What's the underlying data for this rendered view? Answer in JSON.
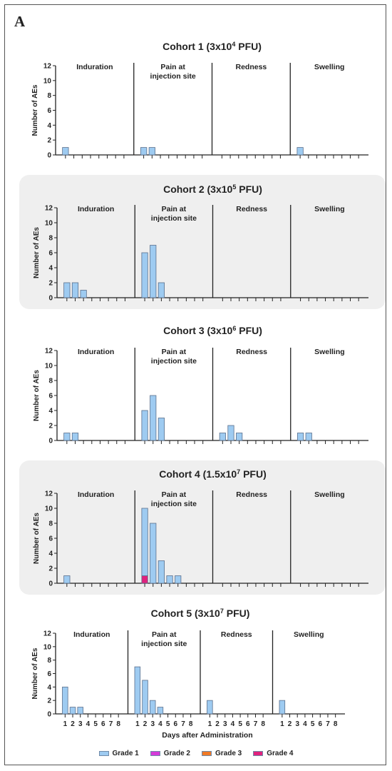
{
  "panel_label": "A",
  "colors": {
    "grade1": "#9ecbf1",
    "grade2": "#d43ad8",
    "grade3": "#f07a26",
    "grade4": "#e0227d",
    "panel_shade": "#efefef"
  },
  "legend": [
    {
      "label": "Grade 1",
      "color_key": "grade1"
    },
    {
      "label": "Grade 2",
      "color_key": "grade2"
    },
    {
      "label": "Grade 3",
      "color_key": "grade3"
    },
    {
      "label": "Grade 4",
      "color_key": "grade4"
    }
  ],
  "chart_data": [
    {
      "type": "bar",
      "title": {
        "base": "Cohort 1 (3x10",
        "exp": "4",
        "unit": " PFU)"
      },
      "ylabel": "Number of AEs",
      "ylim": [
        0,
        12
      ],
      "yticks": [
        "0",
        "2",
        "4",
        "6",
        "8",
        "10",
        "12"
      ],
      "x": [
        "1",
        "2",
        "3",
        "4",
        "5",
        "6",
        "7",
        "8"
      ],
      "shaded": false,
      "facets": [
        {
          "label": "Induration",
          "series": [
            {
              "name": "Grade 1",
              "values": [
                1,
                0,
                0,
                0,
                0,
                0,
                0,
                0
              ]
            }
          ]
        },
        {
          "label": "Pain at\ninjection site",
          "series": [
            {
              "name": "Grade 1",
              "values": [
                1,
                1,
                0,
                0,
                0,
                0,
                0,
                0
              ]
            }
          ]
        },
        {
          "label": "Redness",
          "series": [
            {
              "name": "Grade 1",
              "values": [
                0,
                0,
                0,
                0,
                0,
                0,
                0,
                0
              ]
            }
          ]
        },
        {
          "label": "Swelling",
          "series": [
            {
              "name": "Grade 1",
              "values": [
                1,
                0,
                0,
                0,
                0,
                0,
                0,
                0
              ]
            }
          ]
        }
      ]
    },
    {
      "type": "bar",
      "title": {
        "base": "Cohort 2 (3x10",
        "exp": "5",
        "unit": " PFU)"
      },
      "ylabel": "Number of AEs",
      "ylim": [
        0,
        12
      ],
      "yticks": [
        "0",
        "2",
        "4",
        "6",
        "8",
        "10",
        "12"
      ],
      "x": [
        "1",
        "2",
        "3",
        "4",
        "5",
        "6",
        "7",
        "8"
      ],
      "shaded": true,
      "facets": [
        {
          "label": "Induration",
          "series": [
            {
              "name": "Grade 1",
              "values": [
                2,
                2,
                1,
                0,
                0,
                0,
                0,
                0
              ]
            }
          ]
        },
        {
          "label": "Pain at\ninjection site",
          "series": [
            {
              "name": "Grade 1",
              "values": [
                6,
                7,
                2,
                0,
                0,
                0,
                0,
                0
              ]
            }
          ]
        },
        {
          "label": "Redness",
          "series": [
            {
              "name": "Grade 1",
              "values": [
                0,
                0,
                0,
                0,
                0,
                0,
                0,
                0
              ]
            }
          ]
        },
        {
          "label": "Swelling",
          "series": [
            {
              "name": "Grade 1",
              "values": [
                0,
                0,
                0,
                0,
                0,
                0,
                0,
                0
              ]
            }
          ]
        }
      ]
    },
    {
      "type": "bar",
      "title": {
        "base": "Cohort 3 (3x10",
        "exp": "6",
        "unit": " PFU)"
      },
      "ylabel": "Number of AEs",
      "ylim": [
        0,
        12
      ],
      "yticks": [
        "0",
        "2",
        "4",
        "6",
        "8",
        "10",
        "12"
      ],
      "x": [
        "1",
        "2",
        "3",
        "4",
        "5",
        "6",
        "7",
        "8"
      ],
      "shaded": false,
      "facets": [
        {
          "label": "Induration",
          "series": [
            {
              "name": "Grade 1",
              "values": [
                1,
                1,
                0,
                0,
                0,
                0,
                0,
                0
              ]
            }
          ]
        },
        {
          "label": "Pain at\ninjection site",
          "series": [
            {
              "name": "Grade 1",
              "values": [
                4,
                6,
                3,
                0,
                0,
                0,
                0,
                0
              ]
            }
          ]
        },
        {
          "label": "Redness",
          "series": [
            {
              "name": "Grade 1",
              "values": [
                1,
                2,
                1,
                0,
                0,
                0,
                0,
                0
              ]
            }
          ]
        },
        {
          "label": "Swelling",
          "series": [
            {
              "name": "Grade 1",
              "values": [
                1,
                1,
                0,
                0,
                0,
                0,
                0,
                0
              ]
            }
          ]
        }
      ]
    },
    {
      "type": "bar",
      "title": {
        "base": "Cohort 4 (1.5x10",
        "exp": "7",
        "unit": " PFU)"
      },
      "ylabel": "Number of AEs",
      "ylim": [
        0,
        12
      ],
      "yticks": [
        "0",
        "2",
        "4",
        "6",
        "8",
        "10",
        "12"
      ],
      "x": [
        "1",
        "2",
        "3",
        "4",
        "5",
        "6",
        "7",
        "8"
      ],
      "shaded": true,
      "facets": [
        {
          "label": "Induration",
          "series": [
            {
              "name": "Grade 1",
              "values": [
                1,
                0,
                0,
                0,
                0,
                0,
                0,
                0
              ]
            }
          ]
        },
        {
          "label": "Pain at\ninjection site",
          "series": [
            {
              "name": "Grade 4",
              "values": [
                1,
                0,
                0,
                0,
                0,
                0,
                0,
                0
              ]
            },
            {
              "name": "Grade 1",
              "values": [
                9,
                8,
                3,
                1,
                1,
                0,
                0,
                0
              ]
            }
          ]
        },
        {
          "label": "Redness",
          "series": [
            {
              "name": "Grade 1",
              "values": [
                0,
                0,
                0,
                0,
                0,
                0,
                0,
                0
              ]
            }
          ]
        },
        {
          "label": "Swelling",
          "series": [
            {
              "name": "Grade 1",
              "values": [
                0,
                0,
                0,
                0,
                0,
                0,
                0,
                0
              ]
            }
          ]
        }
      ]
    },
    {
      "type": "bar",
      "title": {
        "base": "Cohort 5 (3x10",
        "exp": "7",
        "unit": " PFU)"
      },
      "ylabel": "Number of AEs",
      "xlabel": "Days after Administration",
      "ylim": [
        0,
        12
      ],
      "yticks": [
        "0",
        "2",
        "4",
        "6",
        "8",
        "10",
        "12"
      ],
      "x": [
        "1",
        "2",
        "3",
        "4",
        "5",
        "6",
        "7",
        "8"
      ],
      "shaded": false,
      "show_xlabels": true,
      "facets": [
        {
          "label": "Induration",
          "series": [
            {
              "name": "Grade 1",
              "values": [
                4,
                1,
                1,
                0,
                0,
                0,
                0,
                0
              ]
            }
          ]
        },
        {
          "label": "Pain at\ninjection site",
          "series": [
            {
              "name": "Grade 1",
              "values": [
                7,
                5,
                2,
                1,
                0,
                0,
                0,
                0
              ]
            }
          ]
        },
        {
          "label": "Redness",
          "series": [
            {
              "name": "Grade 1",
              "values": [
                2,
                0,
                0,
                0,
                0,
                0,
                0,
                0
              ]
            }
          ]
        },
        {
          "label": "Swelling",
          "series": [
            {
              "name": "Grade 1",
              "values": [
                2,
                0,
                0,
                0,
                0,
                0,
                0,
                0
              ]
            }
          ]
        }
      ]
    }
  ]
}
